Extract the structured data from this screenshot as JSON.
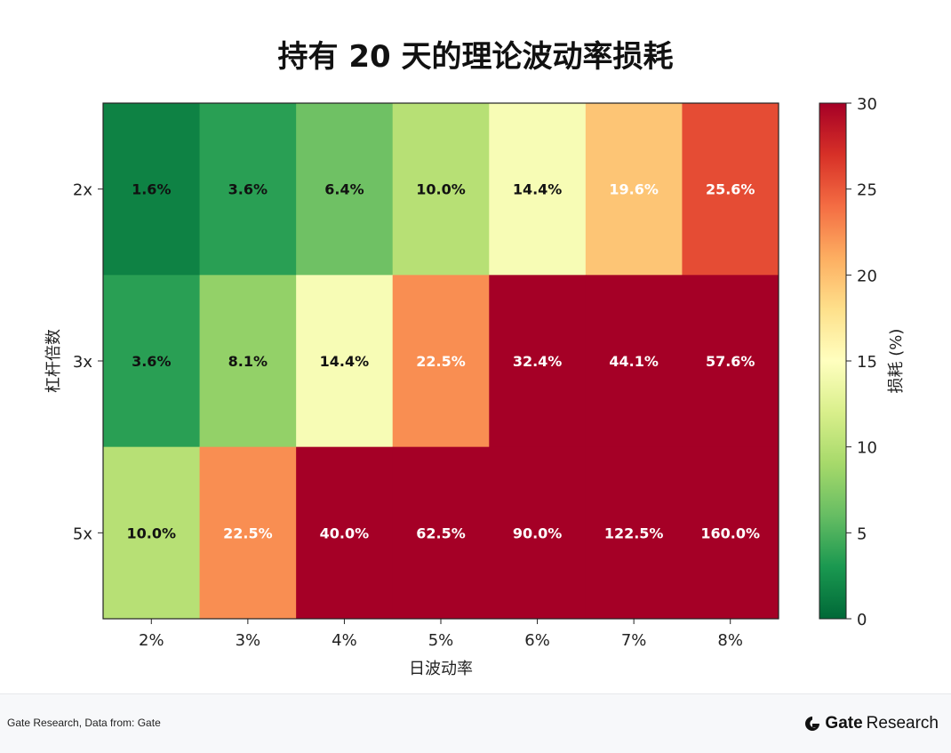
{
  "chart_data": {
    "type": "heatmap",
    "title": "持有 20 天的理论波动率损耗",
    "xlabel": "日波动率",
    "ylabel": "杠杆倍数",
    "x_categories": [
      "2%",
      "3%",
      "4%",
      "5%",
      "6%",
      "7%",
      "8%"
    ],
    "y_categories": [
      "2x",
      "3x",
      "5x"
    ],
    "values": [
      [
        1.6,
        3.6,
        6.4,
        10.0,
        14.4,
        19.6,
        25.6
      ],
      [
        3.6,
        8.1,
        14.4,
        22.5,
        32.4,
        44.1,
        57.6
      ],
      [
        10.0,
        22.5,
        40.0,
        62.5,
        90.0,
        122.5,
        160.0
      ]
    ],
    "cell_labels": [
      [
        "1.6%",
        "3.6%",
        "6.4%",
        "10.0%",
        "14.4%",
        "19.6%",
        "25.6%"
      ],
      [
        "3.6%",
        "8.1%",
        "14.4%",
        "22.5%",
        "32.4%",
        "44.1%",
        "57.6%"
      ],
      [
        "10.0%",
        "22.5%",
        "40.0%",
        "62.5%",
        "90.0%",
        "122.5%",
        "160.0%"
      ]
    ],
    "colorbar": {
      "label": "损耗 (%)",
      "range": [
        0,
        30
      ],
      "ticks": [
        "0",
        "5",
        "10",
        "15",
        "20",
        "25",
        "30"
      ],
      "colormap": "RdYlGn_r"
    }
  },
  "footer": {
    "source": "Gate Research, Data from: Gate",
    "brand_name": "Gate",
    "brand_suffix": "Research"
  },
  "brand_icon": "gate-logo-icon"
}
